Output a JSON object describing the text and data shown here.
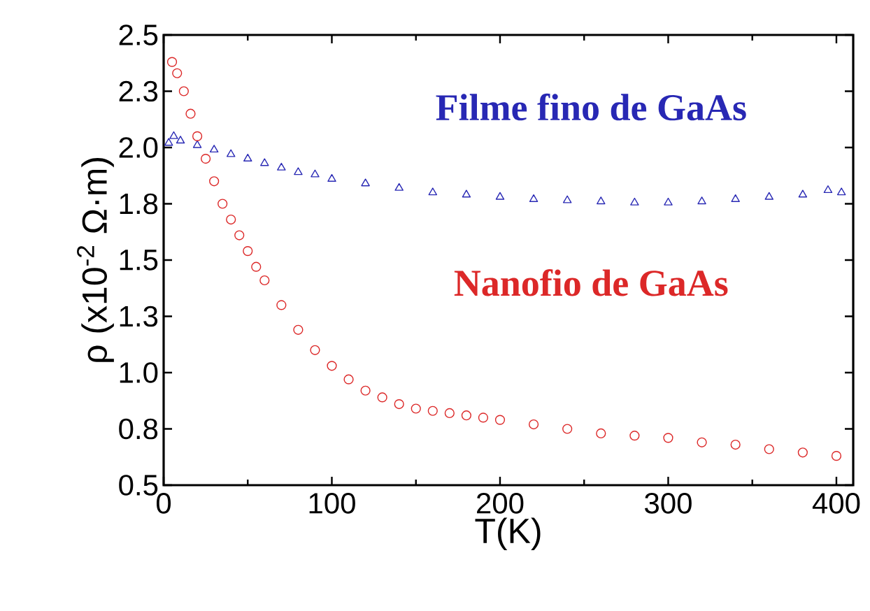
{
  "chart_data": {
    "type": "scatter",
    "xlabel": "T(K)",
    "ylabel": "ρ (x10$^{-2}$ Ω·m)",
    "xlim": [
      0,
      410
    ],
    "xticks": [
      0,
      100,
      200,
      300,
      400
    ],
    "ylim": [
      0.5,
      2.5
    ],
    "yticks": [
      0.5,
      {
        "value": 0.75,
        "label": "0.8"
      },
      {
        "value": 1.0,
        "label": "1.0"
      },
      {
        "value": 1.25,
        "label": "1.3"
      },
      1.5,
      {
        "value": 1.75,
        "label": "1.8"
      },
      {
        "value": 2.0,
        "label": "2.0"
      },
      {
        "value": 2.25,
        "label": "2.3"
      },
      2.5
    ],
    "series": [
      {
        "name": "Filme fino de GaAs",
        "color": "#2828b4",
        "marker": "triangle",
        "x": [
          3,
          6,
          10,
          20,
          30,
          40,
          50,
          60,
          70,
          80,
          90,
          100,
          120,
          140,
          160,
          180,
          200,
          220,
          240,
          260,
          280,
          300,
          320,
          340,
          360,
          380,
          395,
          403
        ],
        "values": [
          2.02,
          2.05,
          2.03,
          2.01,
          1.99,
          1.97,
          1.95,
          1.93,
          1.91,
          1.89,
          1.88,
          1.86,
          1.84,
          1.82,
          1.8,
          1.79,
          1.78,
          1.77,
          1.765,
          1.76,
          1.755,
          1.755,
          1.76,
          1.77,
          1.78,
          1.79,
          1.81,
          1.8
        ]
      },
      {
        "name": "Nanofio de GaAs",
        "color": "#dc2828",
        "marker": "circle",
        "x": [
          5,
          8,
          12,
          16,
          20,
          25,
          30,
          35,
          40,
          45,
          50,
          55,
          60,
          70,
          80,
          90,
          100,
          110,
          120,
          130,
          140,
          150,
          160,
          170,
          180,
          190,
          200,
          220,
          240,
          260,
          280,
          300,
          320,
          340,
          360,
          380,
          400
        ],
        "values": [
          2.38,
          2.33,
          2.25,
          2.15,
          2.05,
          1.95,
          1.85,
          1.75,
          1.68,
          1.61,
          1.54,
          1.47,
          1.41,
          1.3,
          1.19,
          1.1,
          1.03,
          0.97,
          0.92,
          0.89,
          0.86,
          0.84,
          0.83,
          0.82,
          0.81,
          0.8,
          0.79,
          0.77,
          0.75,
          0.73,
          0.72,
          0.71,
          0.69,
          0.68,
          0.66,
          0.645,
          0.63
        ]
      }
    ]
  }
}
